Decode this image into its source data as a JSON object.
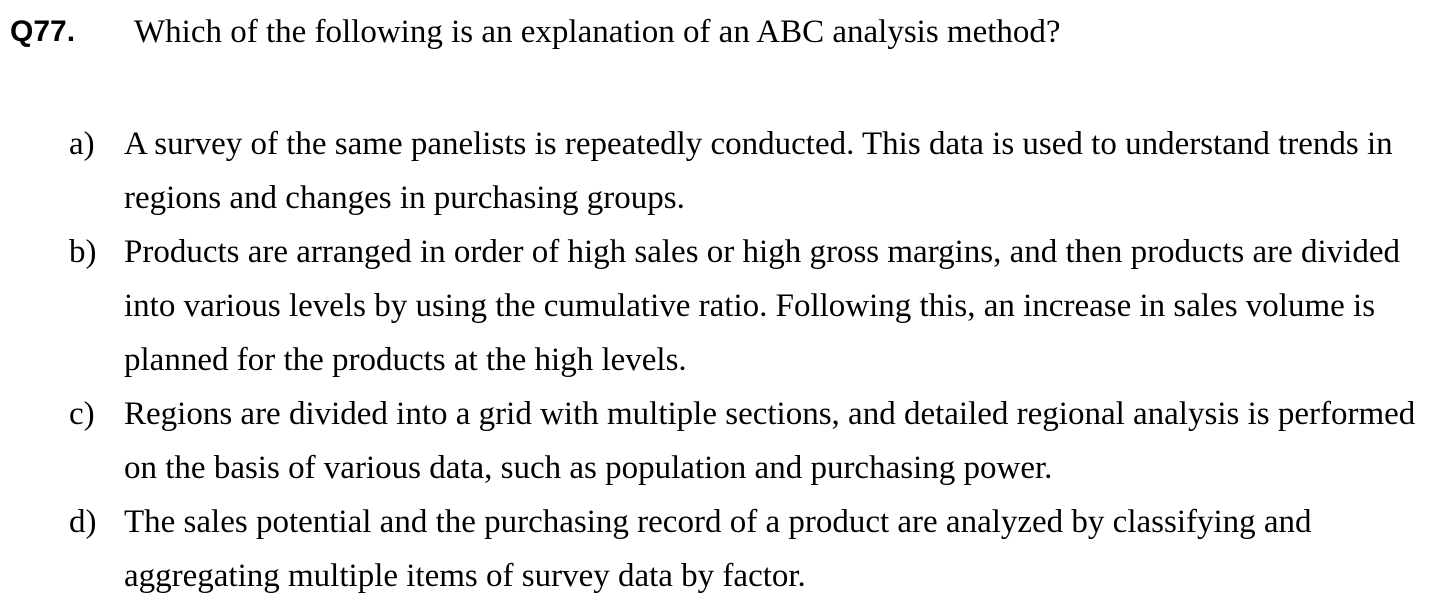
{
  "question": {
    "number": "Q77.",
    "text": "Which of the following is an explanation of an ABC analysis method?"
  },
  "options": [
    {
      "label": "a)",
      "text": "A survey of the same panelists is repeatedly conducted. This data is used to understand trends in regions and changes in purchasing groups."
    },
    {
      "label": "b)",
      "text": "Products are arranged in order of high sales or high gross margins, and then products are divided into various levels by using the cumulative ratio. Following this, an increase in sales volume is planned for the products at the high levels."
    },
    {
      "label": "c)",
      "text": "Regions are divided into a grid with multiple sections, and detailed regional analysis is performed on the basis of various data, such as population and purchasing power."
    },
    {
      "label": "d)",
      "text": "The sales potential and the purchasing record of a product are analyzed by classifying and aggregating multiple items of survey data by factor."
    }
  ]
}
